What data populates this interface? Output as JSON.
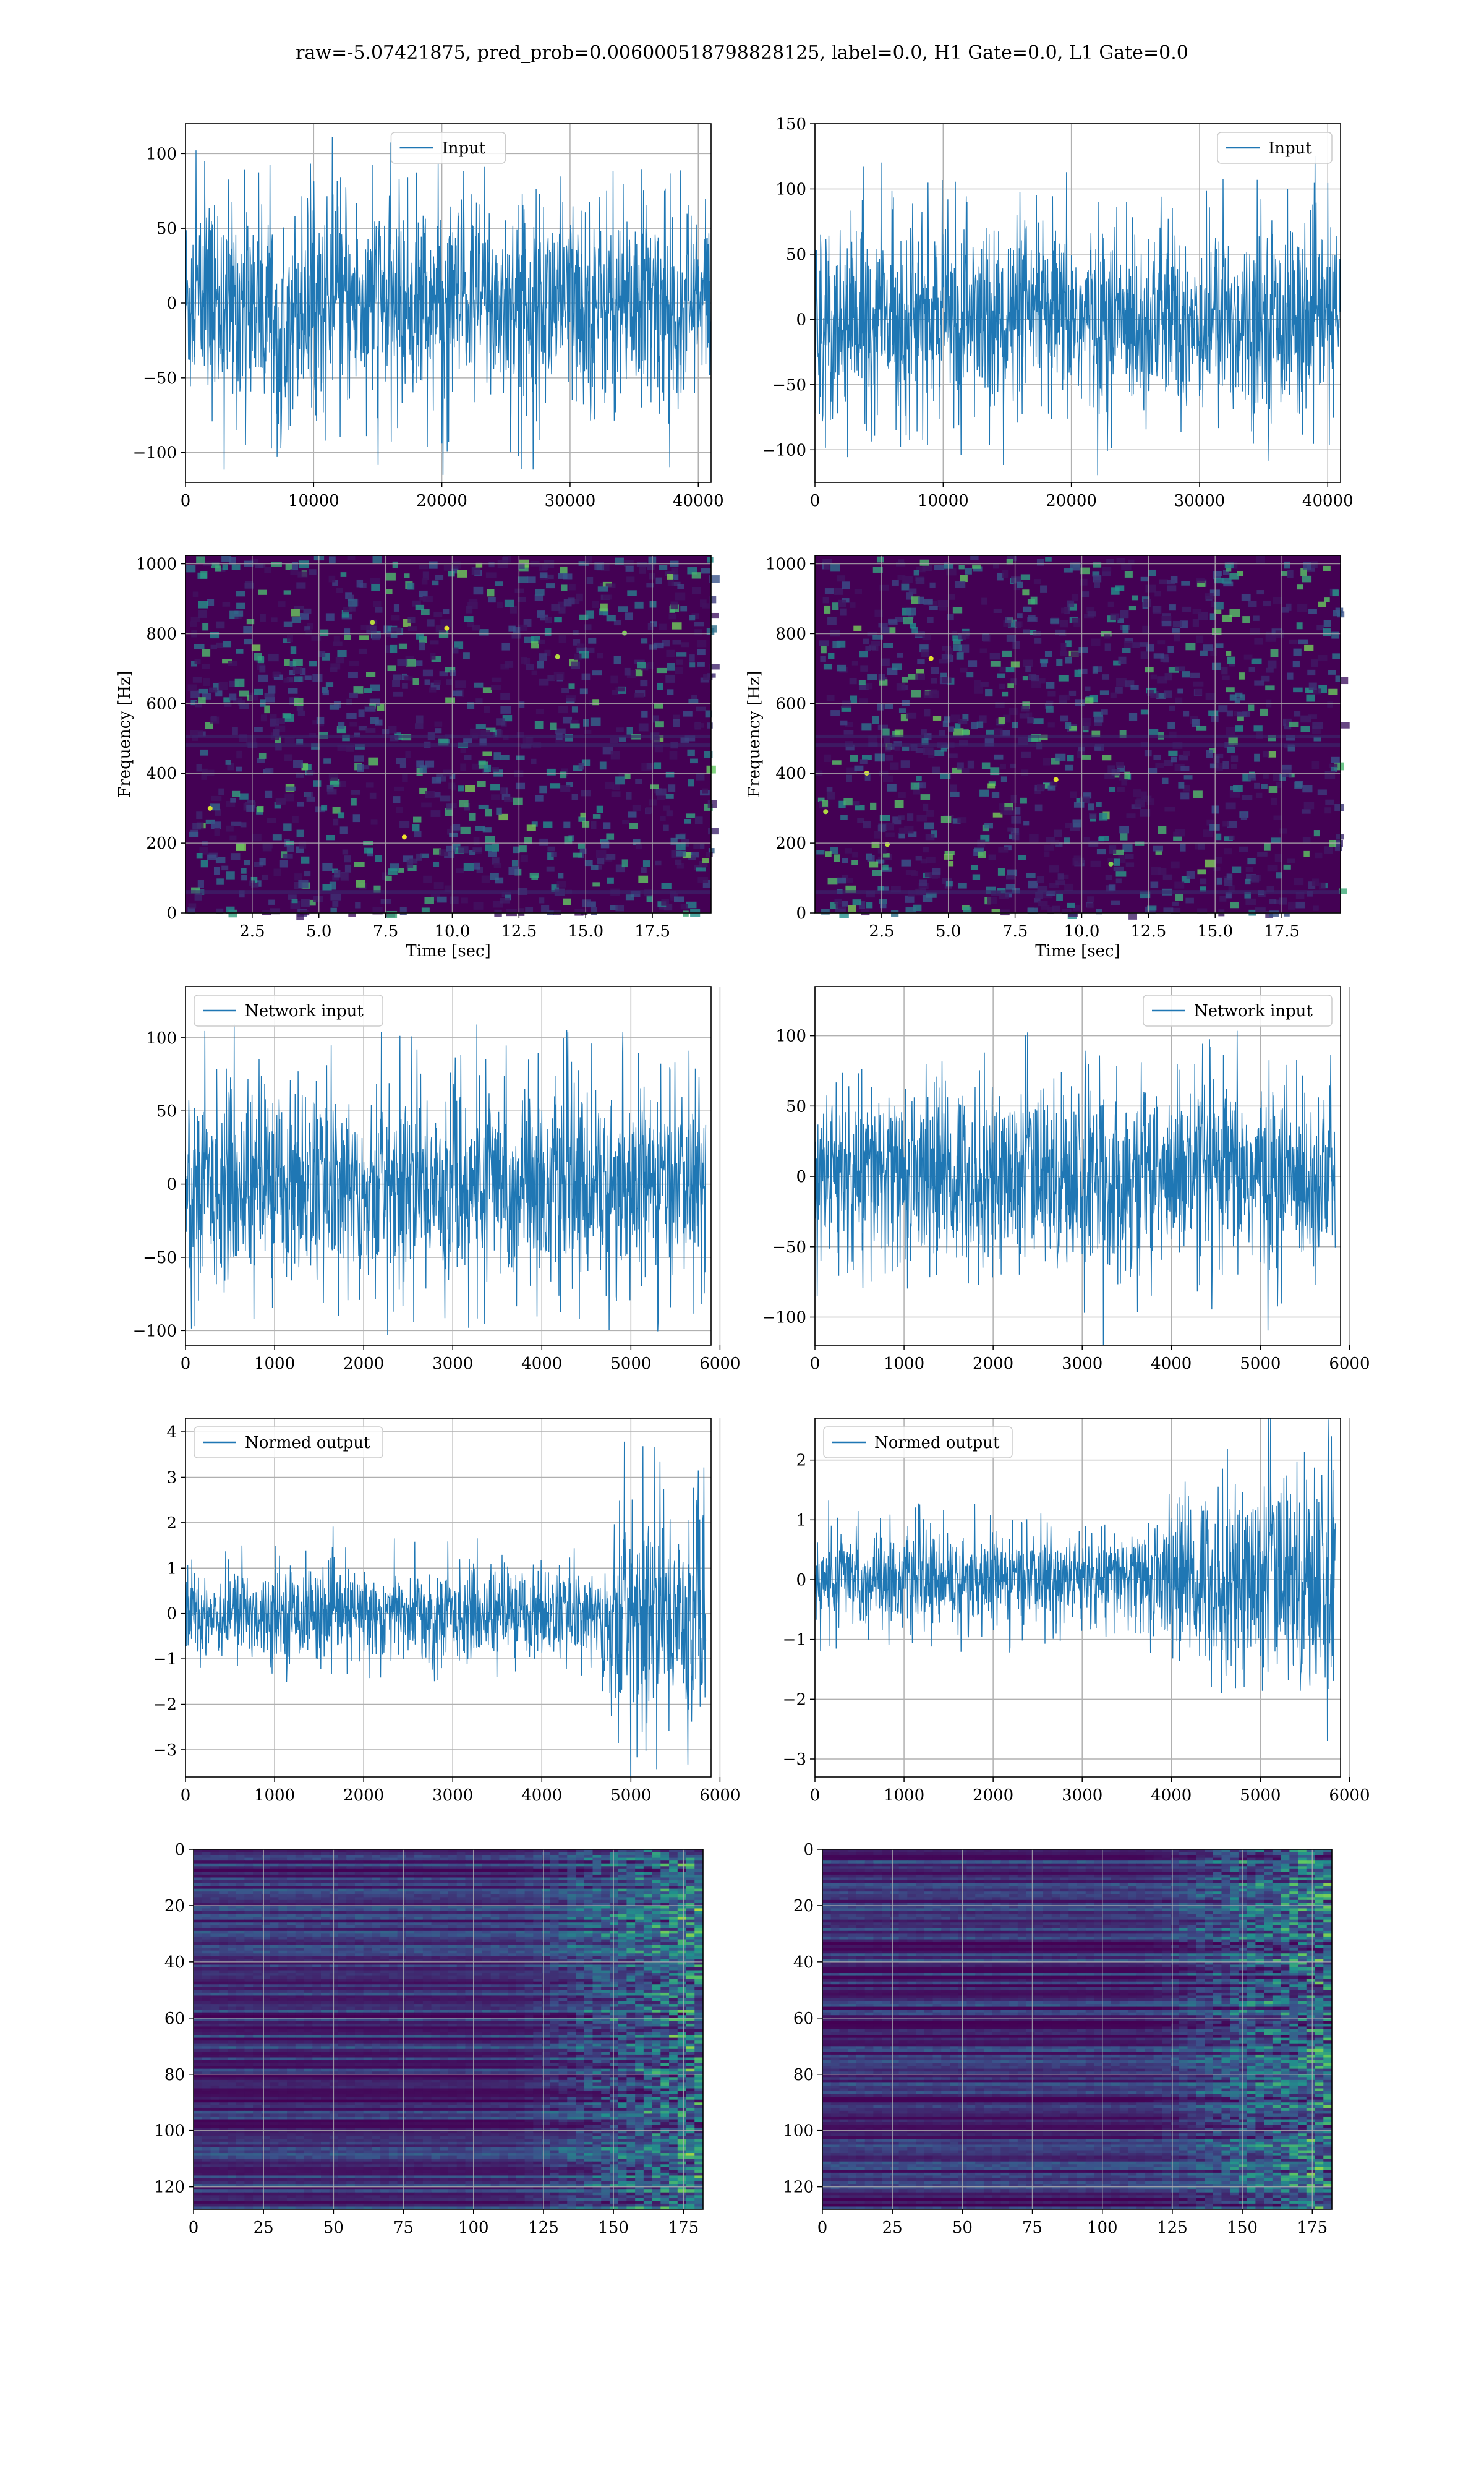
{
  "title": "raw=-5.07421875, pred_prob=0.006000518798828125, label=0.0, H1 Gate=0.0, L1 Gate=0.0",
  "colors": {
    "line": "#1f77b4",
    "grid": "#b0b0b0",
    "viridis_low": "#440154",
    "viridis_high": "#fde725"
  },
  "chart_data": [
    {
      "id": "input-left",
      "type": "line",
      "legend": "Input",
      "legend_loc": "upper center",
      "x_range": [
        0,
        41000
      ],
      "y_range": [
        -120,
        120
      ],
      "amplitude": 35,
      "spike": 115,
      "xticks": [
        0,
        10000,
        20000,
        30000,
        40000
      ],
      "yticks": [
        -100,
        -50,
        0,
        50,
        100
      ],
      "envelope": [
        [
          0,
          35
        ],
        [
          41000,
          35
        ]
      ]
    },
    {
      "id": "input-right",
      "type": "line",
      "legend": "Input",
      "legend_loc": "upper right",
      "x_range": [
        0,
        41000
      ],
      "y_range": [
        -125,
        150
      ],
      "amplitude": 36,
      "spike": 125,
      "xticks": [
        0,
        10000,
        20000,
        30000,
        40000
      ],
      "yticks": [
        -100,
        -50,
        0,
        50,
        100,
        150
      ],
      "envelope": [
        [
          0,
          36
        ],
        [
          41000,
          36
        ]
      ]
    },
    {
      "id": "spec-left",
      "type": "heatmap",
      "xlabel": "Time [sec]",
      "ylabel": "Frequency [Hz]",
      "x_range": [
        0,
        19.7
      ],
      "y_range": [
        0,
        1024
      ],
      "xticks": [
        2.5,
        5.0,
        7.5,
        10.0,
        12.5,
        15.0,
        17.5
      ],
      "xtick_labels": [
        "2.5",
        "5.0",
        "7.5",
        "10.0",
        "12.5",
        "15.0",
        "17.5"
      ],
      "yticks": [
        0,
        200,
        400,
        600,
        800,
        1000
      ]
    },
    {
      "id": "spec-right",
      "type": "heatmap",
      "xlabel": "Time [sec]",
      "ylabel": "Frequency [Hz]",
      "x_range": [
        0,
        19.7
      ],
      "y_range": [
        0,
        1024
      ],
      "xticks": [
        2.5,
        5.0,
        7.5,
        10.0,
        12.5,
        15.0,
        17.5
      ],
      "xtick_labels": [
        "2.5",
        "5.0",
        "7.5",
        "10.0",
        "12.5",
        "15.0",
        "17.5"
      ],
      "yticks": [
        0,
        200,
        400,
        600,
        800,
        1000
      ]
    },
    {
      "id": "network-left",
      "type": "line",
      "legend": "Network input",
      "legend_loc": "upper left",
      "x_range": [
        0,
        5900
      ],
      "y_range": [
        -110,
        135
      ],
      "amplitude": 33,
      "spike": 125,
      "xticks": [
        0,
        1000,
        2000,
        3000,
        4000,
        5000,
        6000
      ],
      "yticks": [
        -100,
        -50,
        0,
        50,
        100
      ],
      "envelope": [
        [
          0,
          33
        ],
        [
          5840,
          33
        ]
      ]
    },
    {
      "id": "network-right",
      "type": "line",
      "legend": "Network input",
      "legend_loc": "upper right",
      "x_range": [
        0,
        5900
      ],
      "y_range": [
        -120,
        135
      ],
      "amplitude": 33,
      "spike": 125,
      "xticks": [
        0,
        1000,
        2000,
        3000,
        4000,
        5000,
        6000
      ],
      "yticks": [
        -100,
        -50,
        0,
        50,
        100
      ],
      "envelope": [
        [
          0,
          33
        ],
        [
          5840,
          33
        ]
      ]
    },
    {
      "id": "normed-left",
      "type": "line",
      "legend": "Normed output",
      "legend_loc": "upper left",
      "x_range": [
        0,
        5900
      ],
      "y_range": [
        -3.6,
        4.3
      ],
      "amplitude": 1.0,
      "spike": 4.2,
      "xticks": [
        0,
        1000,
        2000,
        3000,
        4000,
        5000,
        6000
      ],
      "yticks": [
        -3,
        -2,
        -1,
        0,
        1,
        2,
        3,
        4
      ],
      "envelope": [
        [
          0,
          0.5
        ],
        [
          4650,
          0.5
        ],
        [
          4750,
          1.2
        ],
        [
          5840,
          1.2
        ]
      ]
    },
    {
      "id": "normed-right",
      "type": "line",
      "legend": "Normed output",
      "legend_loc": "upper left",
      "x_range": [
        0,
        5900
      ],
      "y_range": [
        -3.3,
        2.7
      ],
      "amplitude": 0.8,
      "spike": 2.7,
      "xticks": [
        0,
        1000,
        2000,
        3000,
        4000,
        5000,
        6000
      ],
      "yticks": [
        -3,
        -2,
        -1,
        0,
        1,
        2
      ],
      "envelope": [
        [
          0,
          0.4
        ],
        [
          3500,
          0.4
        ],
        [
          4500,
          0.8
        ],
        [
          5840,
          1.0
        ]
      ]
    },
    {
      "id": "features-left",
      "type": "heatmap",
      "x_range": [
        0,
        182
      ],
      "y_range": [
        128,
        0
      ],
      "xticks": [
        0,
        25,
        50,
        75,
        100,
        125,
        150,
        175
      ],
      "yticks": [
        0,
        20,
        40,
        60,
        80,
        100,
        120
      ]
    },
    {
      "id": "features-right",
      "type": "heatmap",
      "x_range": [
        0,
        182
      ],
      "y_range": [
        128,
        0
      ],
      "xticks": [
        0,
        25,
        50,
        75,
        100,
        125,
        150,
        175
      ],
      "yticks": [
        0,
        20,
        40,
        60,
        80,
        100,
        120
      ]
    }
  ]
}
